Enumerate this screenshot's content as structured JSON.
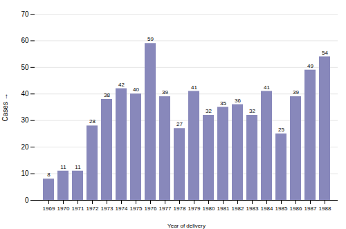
{
  "chart_data": {
    "type": "bar",
    "categories": [
      "1969",
      "1970",
      "1971",
      "1972",
      "1973",
      "1974",
      "1975",
      "1976",
      "1977",
      "1978",
      "1979",
      "1980",
      "1981",
      "1982",
      "1983",
      "1984",
      "1985",
      "1986",
      "1987",
      "1988"
    ],
    "values": [
      8,
      11,
      11,
      28,
      38,
      42,
      40,
      59,
      39,
      27,
      41,
      32,
      35,
      36,
      32,
      41,
      25,
      39,
      49,
      54
    ],
    "color": "#8888bb",
    "xlabel": "Year of delivery",
    "ylabel": "Cases",
    "ylim": [
      0,
      70
    ],
    "yticks": [
      0,
      10,
      20,
      30,
      40,
      50,
      60,
      70
    ],
    "grid": true,
    "data_labels": true
  }
}
